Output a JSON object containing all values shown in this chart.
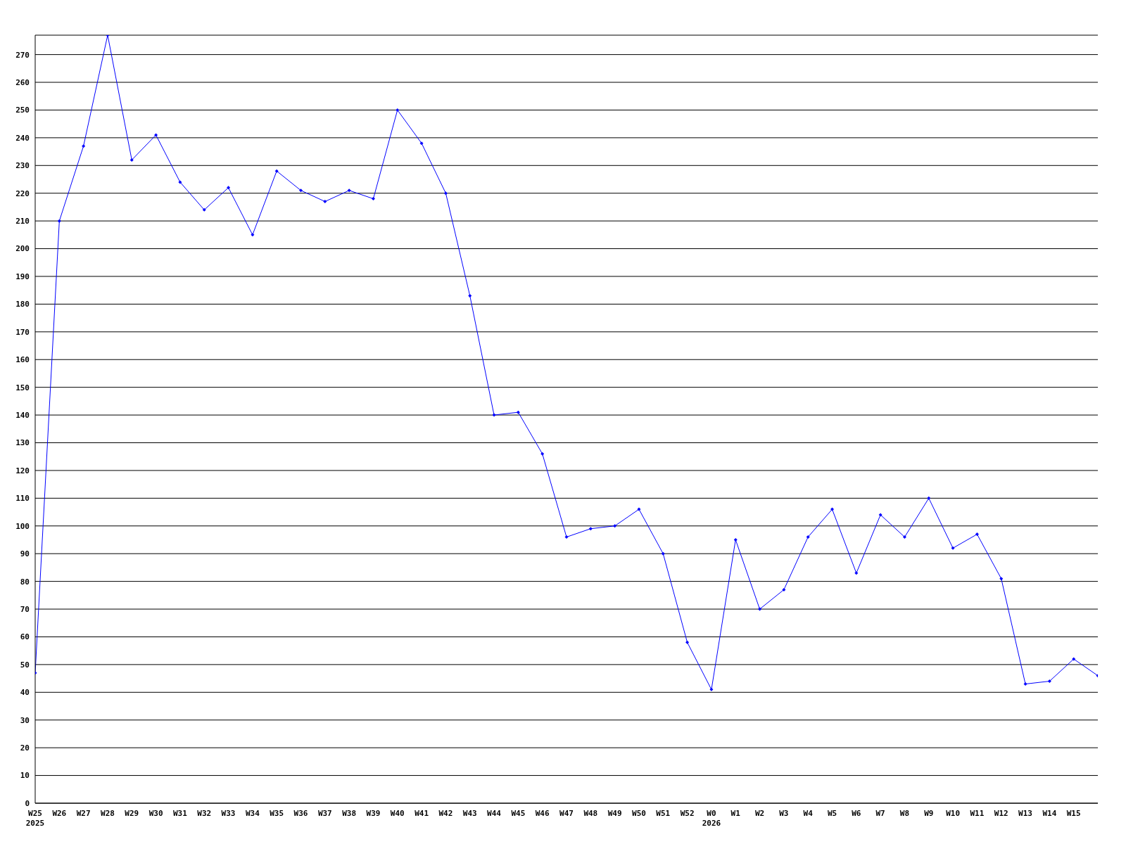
{
  "chart_data": {
    "type": "line",
    "categories": [
      "W25\n2025",
      "W26",
      "W27",
      "W28",
      "W29",
      "W30",
      "W31",
      "W32",
      "W33",
      "W34",
      "W35",
      "W36",
      "W37",
      "W38",
      "W39",
      "W40",
      "W41",
      "W42",
      "W43",
      "W44",
      "W45",
      "W46",
      "W47",
      "W48",
      "W49",
      "W50",
      "W51",
      "W52",
      "W0\n2026",
      "W1",
      "W2",
      "W3",
      "W4",
      "W5",
      "W6",
      "W7",
      "W8",
      "W9",
      "W10",
      "W11",
      "W12",
      "W13",
      "W14",
      "W15",
      null
    ],
    "series": [
      {
        "color": "#0000ff",
        "values": [
          47,
          210,
          237,
          277,
          232,
          241,
          224,
          214,
          222,
          205,
          228,
          221,
          217,
          221,
          218,
          250,
          238,
          220,
          183,
          140,
          141,
          126,
          96,
          99,
          100,
          106,
          90,
          58,
          41,
          95,
          70,
          77,
          96,
          106,
          83,
          104,
          96,
          110,
          92,
          97,
          81,
          43,
          44,
          52,
          46
        ]
      }
    ],
    "ylim": [
      0,
      277
    ],
    "yticks": [
      0,
      10,
      20,
      30,
      40,
      50,
      60,
      70,
      80,
      90,
      100,
      110,
      120,
      130,
      140,
      150,
      160,
      170,
      180,
      190,
      200,
      210,
      220,
      230,
      240,
      250,
      260,
      270
    ],
    "grid": "y",
    "marker": "diamond",
    "line_style": "solid"
  }
}
